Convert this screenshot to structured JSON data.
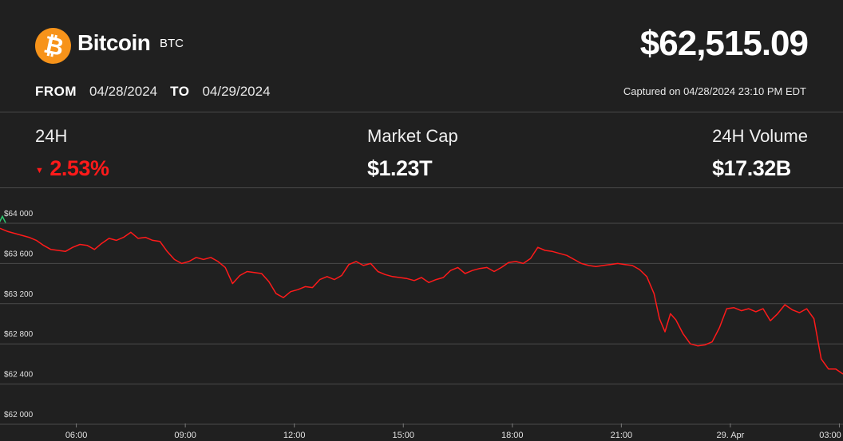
{
  "coin": {
    "name": "Bitcoin",
    "symbol": "BTC",
    "price": "$62,515.09"
  },
  "range": {
    "from_label": "FROM",
    "from": "04/28/2024",
    "to_label": "TO",
    "to": "04/29/2024"
  },
  "captured": "Captured on 04/28/2024 23:10 PM EDT",
  "stats": {
    "change": {
      "label": "24H",
      "value": "2.53%",
      "direction": "down"
    },
    "market_cap": {
      "label": "Market Cap",
      "value": "$1.23T"
    },
    "volume": {
      "label": "24H Volume",
      "value": "$17.32B"
    }
  },
  "colors": {
    "background": "#202020",
    "line": "#ff1a1a",
    "negative": "#ff1a1a",
    "brand": "#f7931a",
    "start_marker": "#2ecc71"
  },
  "icons": {
    "logo": "bitcoin-logo-icon",
    "change": "triangle-down-icon"
  },
  "chart_data": {
    "type": "line",
    "grid": true,
    "ylim": [
      62000,
      64100
    ],
    "y_ticks": [
      64000,
      63600,
      63200,
      62800,
      62400,
      62000
    ],
    "y_tick_labels": [
      "$64 000",
      "$63 600",
      "$63 200",
      "$62 800",
      "$62 400",
      "$62 000"
    ],
    "x_range": [
      3.9,
      27.1
    ],
    "x_ticks": [
      6,
      9,
      12,
      15,
      18,
      21,
      24,
      27
    ],
    "x_tick_labels": [
      "06:00",
      "09:00",
      "12:00",
      "15:00",
      "18:00",
      "21:00",
      "29. Apr",
      "03:00"
    ],
    "series": [
      {
        "x": [
          3.9,
          4.1,
          4.3,
          4.5,
          4.7,
          4.9,
          5.1,
          5.3,
          5.5,
          5.7,
          5.9,
          6.1,
          6.3,
          6.5,
          6.7,
          6.9,
          7.1,
          7.3,
          7.5,
          7.7,
          7.9,
          8.1,
          8.3,
          8.5,
          8.7,
          8.9,
          9.1,
          9.3,
          9.5,
          9.7,
          9.9,
          10.1,
          10.3,
          10.5,
          10.7,
          10.9,
          11.1,
          11.3,
          11.5,
          11.7,
          11.9,
          12.1,
          12.3,
          12.5,
          12.7,
          12.9,
          13.1,
          13.3,
          13.5,
          13.7,
          13.9,
          14.1,
          14.3,
          14.5,
          14.7,
          14.9,
          15.1,
          15.3,
          15.5,
          15.7,
          15.9,
          16.1,
          16.3,
          16.5,
          16.7,
          16.9,
          17.1,
          17.3,
          17.5,
          17.7,
          17.9,
          18.1,
          18.3,
          18.5,
          18.7,
          18.9,
          19.1,
          19.3,
          19.5,
          19.7,
          19.9,
          20.1,
          20.3,
          20.5,
          20.7,
          20.9,
          21.1,
          21.3,
          21.5,
          21.7,
          21.9,
          22.05,
          22.2,
          22.35,
          22.5,
          22.7,
          22.9,
          23.1,
          23.3,
          23.5,
          23.7,
          23.9,
          24.1,
          24.3,
          24.5,
          24.7,
          24.9,
          25.1,
          25.3,
          25.5,
          25.7,
          25.9,
          26.1,
          26.3,
          26.5,
          26.7,
          26.9,
          27.1
        ],
        "y": [
          63950,
          63920,
          63900,
          63880,
          63860,
          63830,
          63780,
          63740,
          63730,
          63720,
          63760,
          63790,
          63780,
          63740,
          63800,
          63850,
          63830,
          63860,
          63910,
          63850,
          63860,
          63830,
          63820,
          63720,
          63640,
          63600,
          63620,
          63660,
          63640,
          63660,
          63620,
          63560,
          63400,
          63480,
          63520,
          63510,
          63500,
          63420,
          63300,
          63260,
          63320,
          63340,
          63370,
          63360,
          63440,
          63470,
          63440,
          63480,
          63590,
          63620,
          63580,
          63600,
          63520,
          63490,
          63470,
          63460,
          63450,
          63430,
          63460,
          63410,
          63440,
          63460,
          63530,
          63560,
          63500,
          63530,
          63550,
          63560,
          63520,
          63560,
          63610,
          63620,
          63600,
          63650,
          63760,
          63730,
          63720,
          63700,
          63680,
          63640,
          63600,
          63580,
          63570,
          63580,
          63590,
          63600,
          63590,
          63580,
          63540,
          63470,
          63300,
          63050,
          62920,
          63100,
          63040,
          62900,
          62800,
          62780,
          62790,
          62820,
          62960,
          63150,
          63160,
          63130,
          63150,
          63120,
          63150,
          63030,
          63100,
          63190,
          63140,
          63110,
          63150,
          63050,
          62650,
          62550,
          62550,
          62500
        ]
      }
    ]
  }
}
